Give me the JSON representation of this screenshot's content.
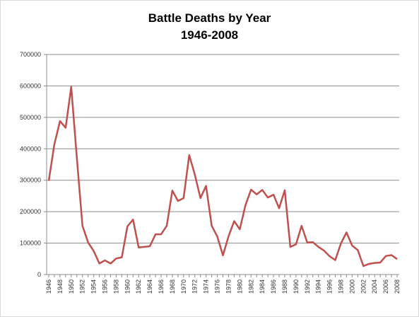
{
  "chart_data": {
    "type": "line",
    "title": "Battle Deaths by Year",
    "subtitle": "1946-2008",
    "xlabel": "",
    "ylabel": "",
    "ylim": [
      0,
      700000
    ],
    "y_ticks": [
      "0",
      "100000",
      "200000",
      "300000",
      "400000",
      "500000",
      "600000",
      "700000"
    ],
    "x_tick_labels": [
      "1946",
      "1948",
      "1950",
      "1952",
      "1954",
      "1956",
      "1958",
      "1960",
      "1962",
      "1964",
      "1966",
      "1968",
      "1970",
      "1972",
      "1974",
      "1976",
      "1978",
      "1980",
      "1982",
      "1984",
      "1986",
      "1988",
      "1990",
      "1992",
      "1994",
      "1996",
      "1998",
      "2000",
      "2002",
      "2004",
      "2006",
      "2008"
    ],
    "grid": true,
    "legend": "none",
    "line_color": "#c0504d",
    "x": [
      1946,
      1947,
      1948,
      1949,
      1950,
      1951,
      1952,
      1953,
      1954,
      1955,
      1956,
      1957,
      1958,
      1959,
      1960,
      1961,
      1962,
      1963,
      1964,
      1965,
      1966,
      1967,
      1968,
      1969,
      1970,
      1971,
      1972,
      1973,
      1974,
      1975,
      1976,
      1977,
      1978,
      1979,
      1980,
      1981,
      1982,
      1983,
      1984,
      1985,
      1986,
      1987,
      1988,
      1989,
      1990,
      1991,
      1992,
      1993,
      1994,
      1995,
      1996,
      1997,
      1998,
      1999,
      2000,
      2001,
      2002,
      2003,
      2004,
      2005,
      2006,
      2007,
      2008
    ],
    "values": [
      298000,
      415000,
      488000,
      467000,
      597000,
      370000,
      155000,
      102000,
      75000,
      35000,
      45000,
      35000,
      51000,
      55000,
      153000,
      175000,
      86000,
      88000,
      90000,
      128000,
      128000,
      155000,
      267000,
      234000,
      243000,
      380000,
      318000,
      243000,
      282000,
      155000,
      121000,
      61000,
      122000,
      170000,
      144000,
      220000,
      270000,
      255000,
      269000,
      245000,
      254000,
      211000,
      268000,
      88000,
      96000,
      155000,
      102000,
      103000,
      88000,
      76000,
      58000,
      46000,
      99000,
      134000,
      92000,
      78000,
      27000,
      34000,
      37000,
      38000,
      59000,
      62000,
      49000
    ]
  }
}
